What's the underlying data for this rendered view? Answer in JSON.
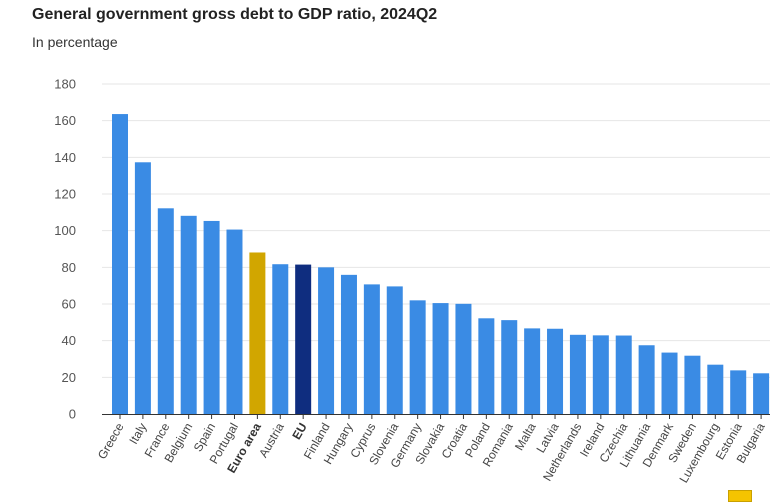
{
  "title": "General government gross debt to GDP ratio, 2024Q2",
  "subtitle": "In percentage",
  "colors": {
    "default_bar": "#3a8be4",
    "euro_area": "#d1a600",
    "eu": "#0f2d7f",
    "grid": "#e6e6e6",
    "axis": "#333333"
  },
  "chart_data": {
    "type": "bar",
    "title": "General government gross debt to GDP ratio, 2024Q2",
    "subtitle": "In percentage",
    "xlabel": "",
    "ylabel": "",
    "ylim": [
      0,
      180
    ],
    "yticks": [
      0,
      20,
      40,
      60,
      80,
      100,
      120,
      140,
      160,
      180
    ],
    "grid": true,
    "categories": [
      "Greece",
      "Italy",
      "France",
      "Belgium",
      "Spain",
      "Portugal",
      "Euro area",
      "Austria",
      "EU",
      "Finland",
      "Hungary",
      "Cyprus",
      "Slovenia",
      "Germany",
      "Slovakia",
      "Croatia",
      "Poland",
      "Romania",
      "Malta",
      "Latvia",
      "Netherlands",
      "Ireland",
      "Czechia",
      "Lithuania",
      "Denmark",
      "Sweden",
      "Luxembourg",
      "Estonia",
      "Bulgaria"
    ],
    "values": [
      163.6,
      137.3,
      112.2,
      108.1,
      105.3,
      100.6,
      88.1,
      81.7,
      81.5,
      80.0,
      75.9,
      70.7,
      69.6,
      62.0,
      60.5,
      60.1,
      52.2,
      51.2,
      46.7,
      46.5,
      43.2,
      42.9,
      42.8,
      37.5,
      33.5,
      31.8,
      26.9,
      23.8,
      22.2
    ],
    "highlight": {
      "Euro area": "#d1a600",
      "EU": "#0f2d7f"
    },
    "bold_labels": [
      "Euro area",
      "EU"
    ]
  }
}
